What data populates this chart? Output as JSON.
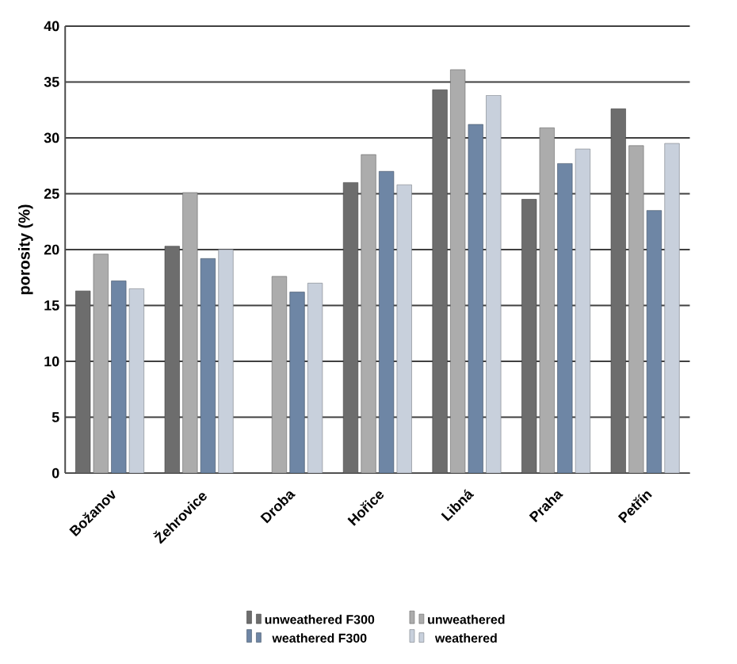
{
  "chart_data": {
    "type": "bar",
    "ylabel": "porosity (%)",
    "categories": [
      "Božanov",
      "Žehrovice",
      "Droba",
      "Hořice",
      "Libná",
      "Praha",
      "Petřín"
    ],
    "series": [
      {
        "name": "unweathered F300",
        "color": "#6d6d6d",
        "values": [
          16.3,
          20.3,
          null,
          26.0,
          34.3,
          24.5,
          32.6
        ]
      },
      {
        "name": "unweathered",
        "color": "#acacac",
        "values": [
          19.6,
          25.1,
          17.6,
          28.5,
          36.1,
          30.9,
          29.3
        ]
      },
      {
        "name": "weathered F300",
        "color": "#6e86a5",
        "values": [
          17.2,
          19.2,
          16.2,
          27.0,
          31.2,
          27.7,
          23.5
        ]
      },
      {
        "name": "weathered",
        "color": "#c8d0dc",
        "values": [
          16.5,
          20.0,
          17.0,
          25.8,
          33.8,
          29.0,
          29.5
        ]
      }
    ],
    "ylim": [
      0,
      40
    ],
    "yticks": [
      0,
      5,
      10,
      15,
      20,
      25,
      30,
      35,
      40
    ],
    "grid": "y",
    "legend": "bottom"
  }
}
